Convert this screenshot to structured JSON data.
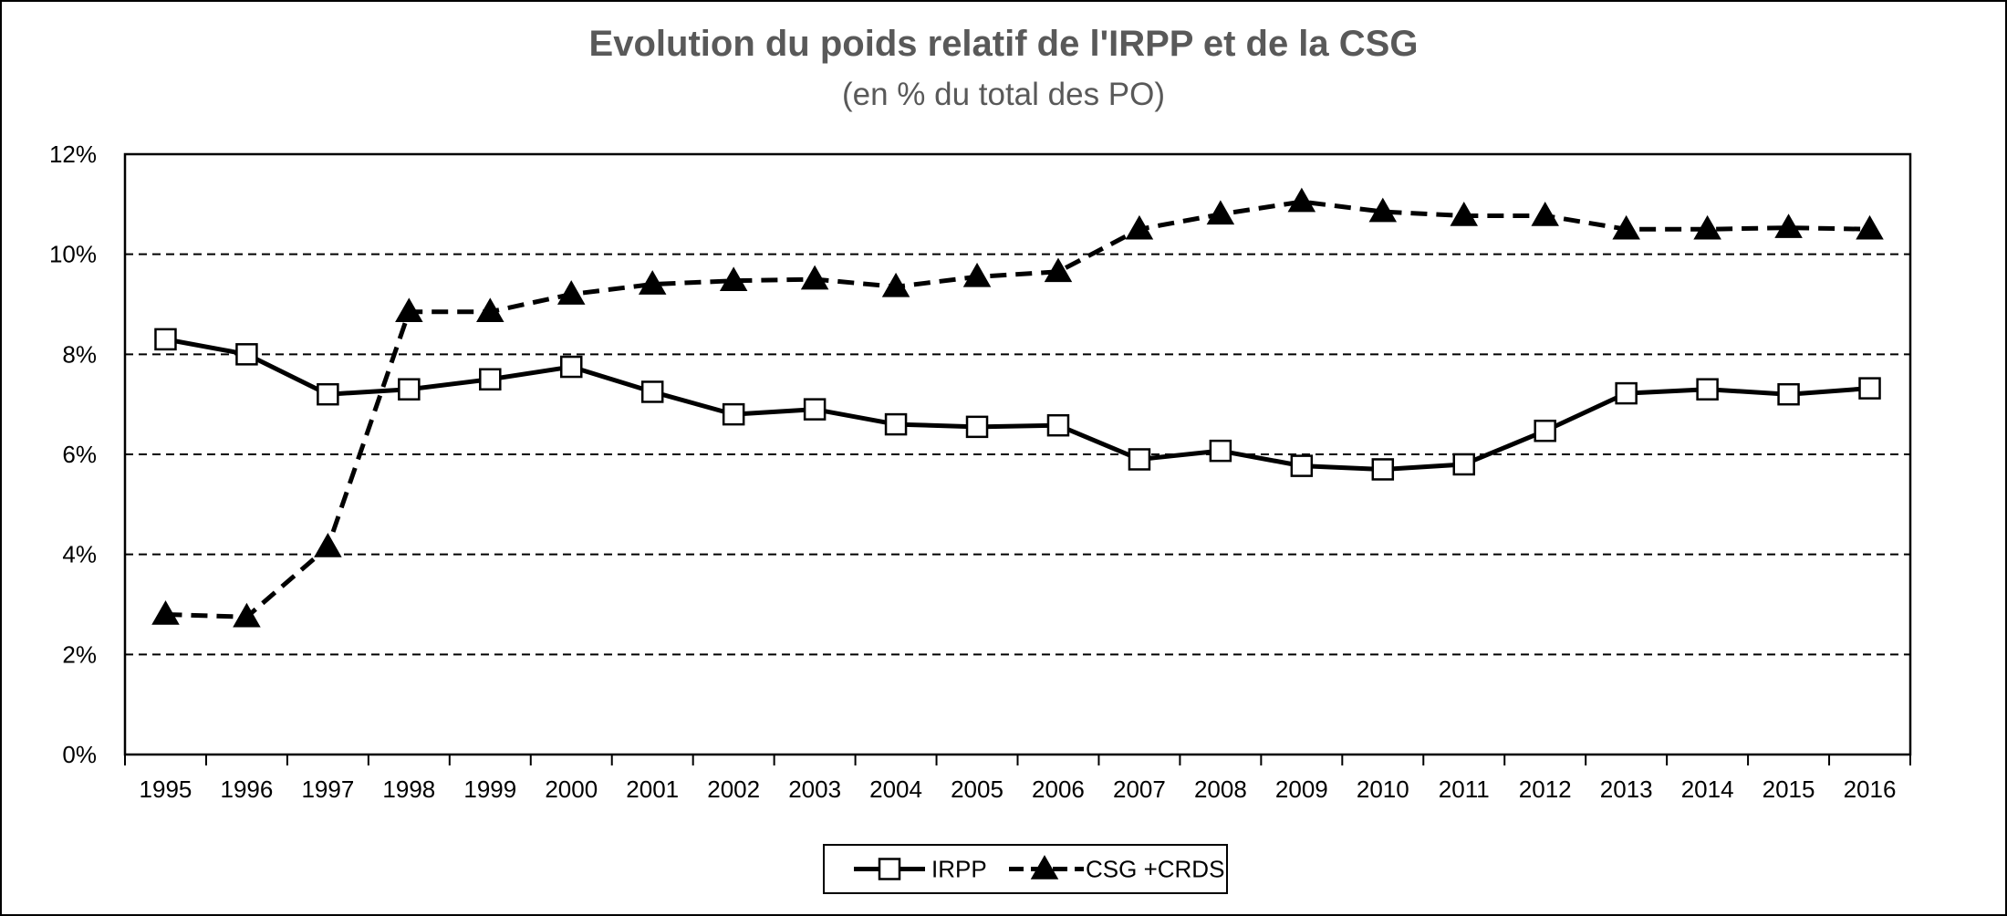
{
  "chart_data": {
    "type": "line",
    "title": "Evolution du poids relatif de l'IRPP et de la CSG",
    "subtitle": "(en % du total des PO)",
    "categories": [
      "1995",
      "1996",
      "1997",
      "1998",
      "1999",
      "2000",
      "2001",
      "2002",
      "2003",
      "2004",
      "2005",
      "2006",
      "2007",
      "2008",
      "2009",
      "2010",
      "2011",
      "2012",
      "2013",
      "2014",
      "2015",
      "2016"
    ],
    "yticks": [
      "0%",
      "2%",
      "4%",
      "6%",
      "8%",
      "10%",
      "12%"
    ],
    "ylim": [
      0,
      12
    ],
    "grid": "horizontal dashed",
    "legend_position": "bottom-center",
    "series": [
      {
        "name": "IRPP",
        "style": "solid line, open square markers",
        "color": "#000000",
        "values": [
          8.3,
          8.0,
          7.2,
          7.3,
          7.5,
          7.75,
          7.25,
          6.8,
          6.9,
          6.6,
          6.55,
          6.58,
          5.9,
          6.07,
          5.77,
          5.7,
          5.8,
          6.47,
          7.22,
          7.3,
          7.2,
          7.32
        ]
      },
      {
        "name": "CSG +CRDS",
        "style": "dashed line, filled triangle markers",
        "color": "#000000",
        "values": [
          2.8,
          2.75,
          4.15,
          8.85,
          8.85,
          9.2,
          9.4,
          9.47,
          9.5,
          9.35,
          9.55,
          9.65,
          10.5,
          10.8,
          11.05,
          10.85,
          10.77,
          10.77,
          10.5,
          10.5,
          10.53,
          10.5
        ]
      }
    ]
  }
}
